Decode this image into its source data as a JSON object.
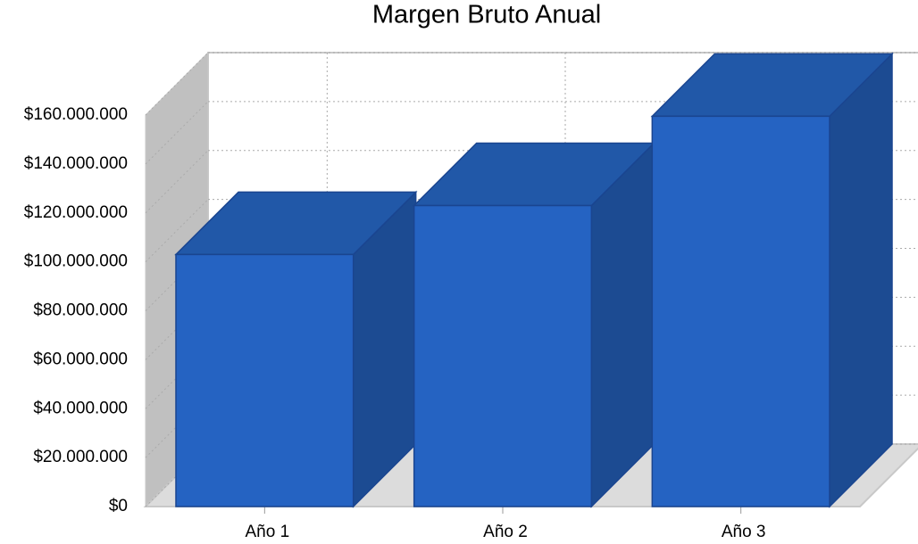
{
  "chart_data": {
    "type": "bar3d",
    "title": "Margen Bruto Anual",
    "categories": [
      "Año 1",
      "Año 2",
      "Año 3"
    ],
    "values": [
      103000000,
      123000000,
      159500000
    ],
    "color": "#2563c2",
    "ylim": [
      0,
      160000000
    ],
    "yticks": [
      {
        "value": 0,
        "label": "$0"
      },
      {
        "value": 20000000,
        "label": "$20.000.000"
      },
      {
        "value": 40000000,
        "label": "$40.000.000"
      },
      {
        "value": 60000000,
        "label": "$60.000.000"
      },
      {
        "value": 80000000,
        "label": "$80.000.000"
      },
      {
        "value": 100000000,
        "label": "$100.000.000"
      },
      {
        "value": 120000000,
        "label": "$120.000.000"
      },
      {
        "value": 140000000,
        "label": "$140.000.000"
      },
      {
        "value": 160000000,
        "label": "$160.000.000"
      }
    ],
    "grid": true
  }
}
